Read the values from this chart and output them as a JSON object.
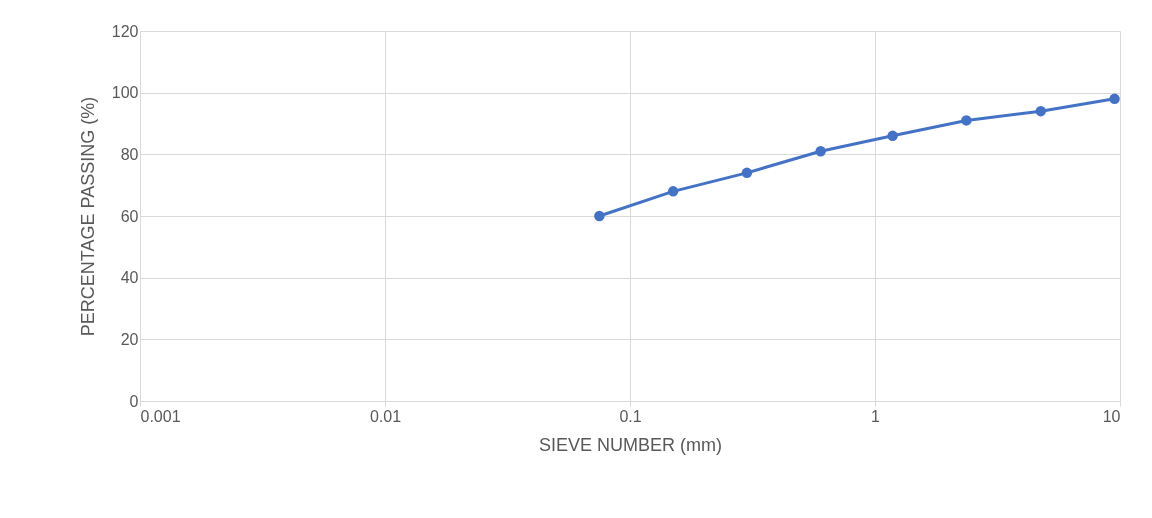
{
  "chart_data": {
    "type": "line",
    "xlabel": "SIEVE NUMBER (mm)",
    "ylabel": "PERCENTAGE PASSING (%)",
    "x": [
      0.075,
      0.15,
      0.3,
      0.6,
      1.18,
      2.36,
      4.75,
      9.5
    ],
    "series": [
      {
        "color": "#4472c4",
        "values": [
          60,
          68,
          74,
          81,
          86,
          91,
          94,
          98
        ]
      }
    ],
    "xlim": [
      0.001,
      10
    ],
    "xticks": [
      0.001,
      0.01,
      0.1,
      1,
      10
    ],
    "ylim": [
      0,
      120
    ],
    "yticks": [
      0,
      20,
      40,
      60,
      80,
      100,
      120
    ],
    "log": "x",
    "grid": true,
    "marker": "circle",
    "line_style": "solid"
  }
}
